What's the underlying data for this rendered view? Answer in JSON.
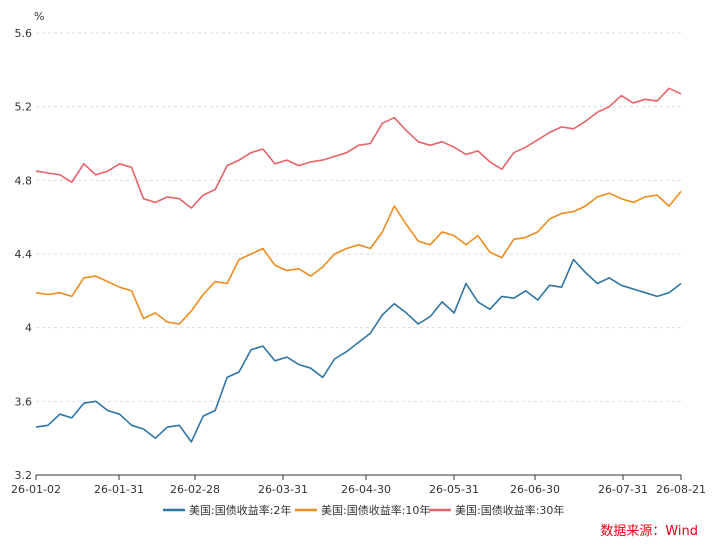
{
  "chart_data": {
    "type": "line",
    "unit_label": "%",
    "ylim": [
      3.2,
      5.6
    ],
    "y_ticks": [
      "3.2",
      "3.6",
      "4",
      "4.4",
      "4.8",
      "5.2",
      "5.6"
    ],
    "x_tick_labels": [
      "26-01-02",
      "26-01-31",
      "26-02-28",
      "26-03-31",
      "26-04-30",
      "26-05-31",
      "26-06-30",
      "26-07-31",
      "26-08-21"
    ],
    "grid": "horizontal-dashed",
    "legend_position": "bottom",
    "x": [
      "01-02",
      "01-06",
      "01-10",
      "01-15",
      "01-20",
      "01-23",
      "01-28",
      "02-02",
      "02-06",
      "02-11",
      "02-15",
      "02-18",
      "02-22",
      "02-26",
      "03-01",
      "03-06",
      "03-10",
      "03-13",
      "03-17",
      "03-20",
      "03-24",
      "03-29",
      "04-02",
      "04-07",
      "04-11",
      "04-15",
      "04-19",
      "04-23",
      "04-28",
      "05-03",
      "05-07",
      "05-11",
      "05-14",
      "05-19",
      "05-24",
      "05-28",
      "06-03",
      "06-07",
      "06-11",
      "06-14",
      "06-18",
      "06-23",
      "06-27",
      "07-02",
      "07-07",
      "07-12",
      "07-17",
      "07-21",
      "07-26",
      "07-31",
      "08-04",
      "08-09",
      "08-13",
      "08-17",
      "08-21"
    ],
    "series": [
      {
        "name": "美国:国债收益率:2年",
        "color": "#2e75a6",
        "values": [
          3.46,
          3.47,
          3.53,
          3.51,
          3.59,
          3.6,
          3.55,
          3.53,
          3.47,
          3.45,
          3.4,
          3.46,
          3.47,
          3.38,
          3.52,
          3.55,
          3.73,
          3.76,
          3.88,
          3.9,
          3.82,
          3.84,
          3.8,
          3.78,
          3.73,
          3.83,
          3.87,
          3.92,
          3.97,
          4.07,
          4.13,
          4.08,
          4.02,
          4.06,
          4.14,
          4.08,
          4.24,
          4.14,
          4.1,
          4.17,
          4.16,
          4.2,
          4.15,
          4.23,
          4.22,
          4.37,
          4.3,
          4.24,
          4.27,
          4.23,
          4.21,
          4.19,
          4.17,
          4.19,
          4.24
        ]
      },
      {
        "name": "美国:国债收益率:10年",
        "color": "#f08c1e",
        "values": [
          4.19,
          4.18,
          4.19,
          4.17,
          4.27,
          4.28,
          4.25,
          4.22,
          4.2,
          4.05,
          4.08,
          4.03,
          4.02,
          4.09,
          4.18,
          4.25,
          4.24,
          4.37,
          4.4,
          4.43,
          4.34,
          4.31,
          4.32,
          4.28,
          4.33,
          4.4,
          4.43,
          4.45,
          4.43,
          4.52,
          4.66,
          4.56,
          4.47,
          4.45,
          4.52,
          4.5,
          4.45,
          4.5,
          4.41,
          4.38,
          4.48,
          4.49,
          4.52,
          4.59,
          4.62,
          4.63,
          4.66,
          4.71,
          4.73,
          4.7,
          4.68,
          4.71,
          4.72,
          4.66,
          4.74
        ]
      },
      {
        "name": "美国:国债收益率:30年",
        "color": "#e8636a",
        "values": [
          4.85,
          4.84,
          4.83,
          4.79,
          4.89,
          4.83,
          4.85,
          4.89,
          4.87,
          4.7,
          4.68,
          4.71,
          4.7,
          4.65,
          4.72,
          4.75,
          4.88,
          4.91,
          4.95,
          4.97,
          4.89,
          4.91,
          4.88,
          4.9,
          4.91,
          4.93,
          4.95,
          4.99,
          5.0,
          5.11,
          5.14,
          5.07,
          5.01,
          4.99,
          5.01,
          4.98,
          4.94,
          4.96,
          4.9,
          4.86,
          4.95,
          4.98,
          5.02,
          5.06,
          5.09,
          5.08,
          5.12,
          5.17,
          5.2,
          5.26,
          5.22,
          5.24,
          5.23,
          5.3,
          5.27
        ]
      }
    ]
  },
  "source_label": "数据来源：Wind"
}
